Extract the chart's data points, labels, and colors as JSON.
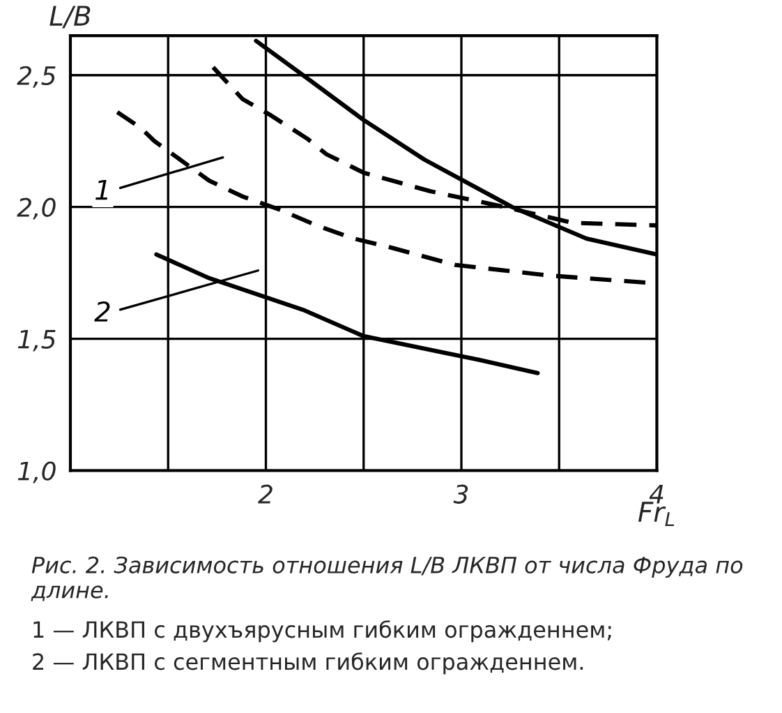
{
  "chart_data": {
    "type": "line",
    "xlabel": "Fr$_{L}$",
    "ylabel": "L/B",
    "xlim": [
      1,
      4
    ],
    "ylim": [
      1.0,
      2.65
    ],
    "xticks": [
      {
        "value": 1.5,
        "label": null
      },
      2,
      {
        "value": 2.5,
        "label": null
      },
      3,
      {
        "value": 3.5,
        "label": null
      },
      4
    ],
    "yticks": [
      {
        "value": 1.0,
        "label": "1,0"
      },
      {
        "value": 1.5,
        "label": "1,5"
      },
      {
        "value": 2.0,
        "label": "2,0"
      },
      {
        "value": 2.5,
        "label": "2,5"
      }
    ],
    "grid": true,
    "marker": "none",
    "series": [
      {
        "color": "#000000",
        "line_style": "dashed",
        "x": [
          1.73,
          1.88,
          2.02,
          2.21,
          2.31,
          2.5,
          2.84,
          3.16,
          3.57,
          4.0
        ],
        "values": [
          2.53,
          2.41,
          2.35,
          2.26,
          2.2,
          2.13,
          2.06,
          2.01,
          1.94,
          1.93
        ]
      },
      {
        "color": "#000000",
        "line_style": "dashed",
        "x": [
          1.24,
          1.36,
          1.43,
          1.71,
          1.88,
          2.07,
          2.26,
          2.45,
          2.62,
          2.97,
          3.45,
          4.0
        ],
        "values": [
          2.36,
          2.3,
          2.25,
          2.1,
          2.04,
          1.99,
          1.93,
          1.88,
          1.85,
          1.78,
          1.74,
          1.71
        ]
      },
      {
        "color": "#000000",
        "line_style": "solid",
        "x": [
          1.95,
          2.19,
          2.5,
          2.81,
          3.26,
          3.64,
          4.0
        ],
        "values": [
          2.63,
          2.5,
          2.33,
          2.18,
          2.0,
          1.88,
          1.82
        ]
      },
      {
        "color": "#000000",
        "line_style": "solid",
        "x": [
          1.44,
          1.71,
          2.19,
          2.5,
          3.09,
          3.39
        ],
        "values": [
          1.82,
          1.73,
          1.61,
          1.51,
          1.42,
          1.37
        ]
      }
    ],
    "annotations": [
      "1",
      "2",
      "Рис. 2. Зависимость отношения L/B ЛКВП от числа Фруда по длине.",
      "1 — ЛКВП с двухъярусным гибким огражденнем;",
      "2 — ЛКВП с сегментным гибким огражденнем."
    ]
  }
}
